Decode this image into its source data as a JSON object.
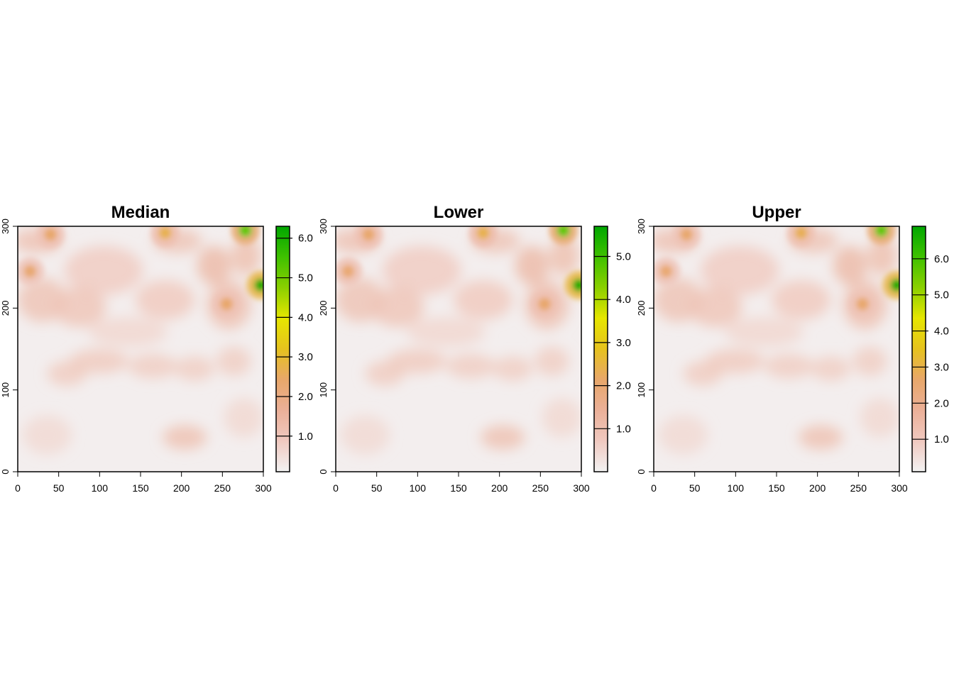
{
  "chart_data": [
    {
      "type": "heatmap",
      "title": "Median",
      "xlabel": "",
      "ylabel": "",
      "xlim": [
        0,
        300
      ],
      "ylim": [
        0,
        300
      ],
      "x_ticks": [
        "0",
        "50",
        "100",
        "150",
        "200",
        "250",
        "300"
      ],
      "y_ticks": [
        "0",
        "100",
        "200",
        "300"
      ],
      "colorbar": {
        "min": 0.1,
        "max": 6.3,
        "ticks": [
          1.0,
          2.0,
          3.0,
          4.0,
          5.0,
          6.0
        ],
        "tick_labels": [
          "1.0",
          "2.0",
          "3.0",
          "4.0",
          "5.0",
          "6.0"
        ]
      },
      "hotspots": [
        {
          "x": 297,
          "y": 228,
          "value": 6.2
        },
        {
          "x": 278,
          "y": 295,
          "value": 5.2
        },
        {
          "x": 180,
          "y": 292,
          "value": 2.7
        },
        {
          "x": 40,
          "y": 290,
          "value": 2.4
        },
        {
          "x": 15,
          "y": 245,
          "value": 2.3
        },
        {
          "x": 255,
          "y": 205,
          "value": 2.4
        }
      ]
    },
    {
      "type": "heatmap",
      "title": "Lower",
      "xlabel": "",
      "ylabel": "",
      "xlim": [
        0,
        300
      ],
      "ylim": [
        0,
        300
      ],
      "x_ticks": [
        "0",
        "50",
        "100",
        "150",
        "200",
        "250",
        "300"
      ],
      "y_ticks": [
        "0",
        "100",
        "200",
        "300"
      ],
      "colorbar": {
        "min": 0.0,
        "max": 5.7,
        "ticks": [
          1.0,
          2.0,
          3.0,
          4.0,
          5.0
        ],
        "tick_labels": [
          "1.0",
          "2.0",
          "3.0",
          "4.0",
          "5.0"
        ]
      },
      "hotspots": [
        {
          "x": 297,
          "y": 228,
          "value": 5.6
        },
        {
          "x": 278,
          "y": 295,
          "value": 4.7
        },
        {
          "x": 180,
          "y": 292,
          "value": 2.4
        },
        {
          "x": 40,
          "y": 290,
          "value": 2.1
        },
        {
          "x": 15,
          "y": 245,
          "value": 2.0
        },
        {
          "x": 255,
          "y": 205,
          "value": 2.1
        }
      ]
    },
    {
      "type": "heatmap",
      "title": "Upper",
      "xlabel": "",
      "ylabel": "",
      "xlim": [
        0,
        300
      ],
      "ylim": [
        0,
        300
      ],
      "x_ticks": [
        "0",
        "50",
        "100",
        "150",
        "200",
        "250",
        "300"
      ],
      "y_ticks": [
        "0",
        "100",
        "200",
        "300"
      ],
      "colorbar": {
        "min": 0.1,
        "max": 6.9,
        "ticks": [
          1.0,
          2.0,
          3.0,
          4.0,
          5.0,
          6.0
        ],
        "tick_labels": [
          "1.0",
          "2.0",
          "3.0",
          "4.0",
          "5.0",
          "6.0"
        ]
      },
      "hotspots": [
        {
          "x": 297,
          "y": 228,
          "value": 6.8
        },
        {
          "x": 278,
          "y": 295,
          "value": 5.7
        },
        {
          "x": 180,
          "y": 292,
          "value": 2.9
        },
        {
          "x": 40,
          "y": 290,
          "value": 2.6
        },
        {
          "x": 15,
          "y": 245,
          "value": 2.5
        },
        {
          "x": 255,
          "y": 205,
          "value": 2.6
        }
      ]
    }
  ],
  "palette": [
    "#f2f2f2",
    "#f0c9c0",
    "#ebb098",
    "#e8a76a",
    "#e6c21e",
    "#e6e600",
    "#8bd000",
    "#3fc100",
    "#00a600"
  ]
}
